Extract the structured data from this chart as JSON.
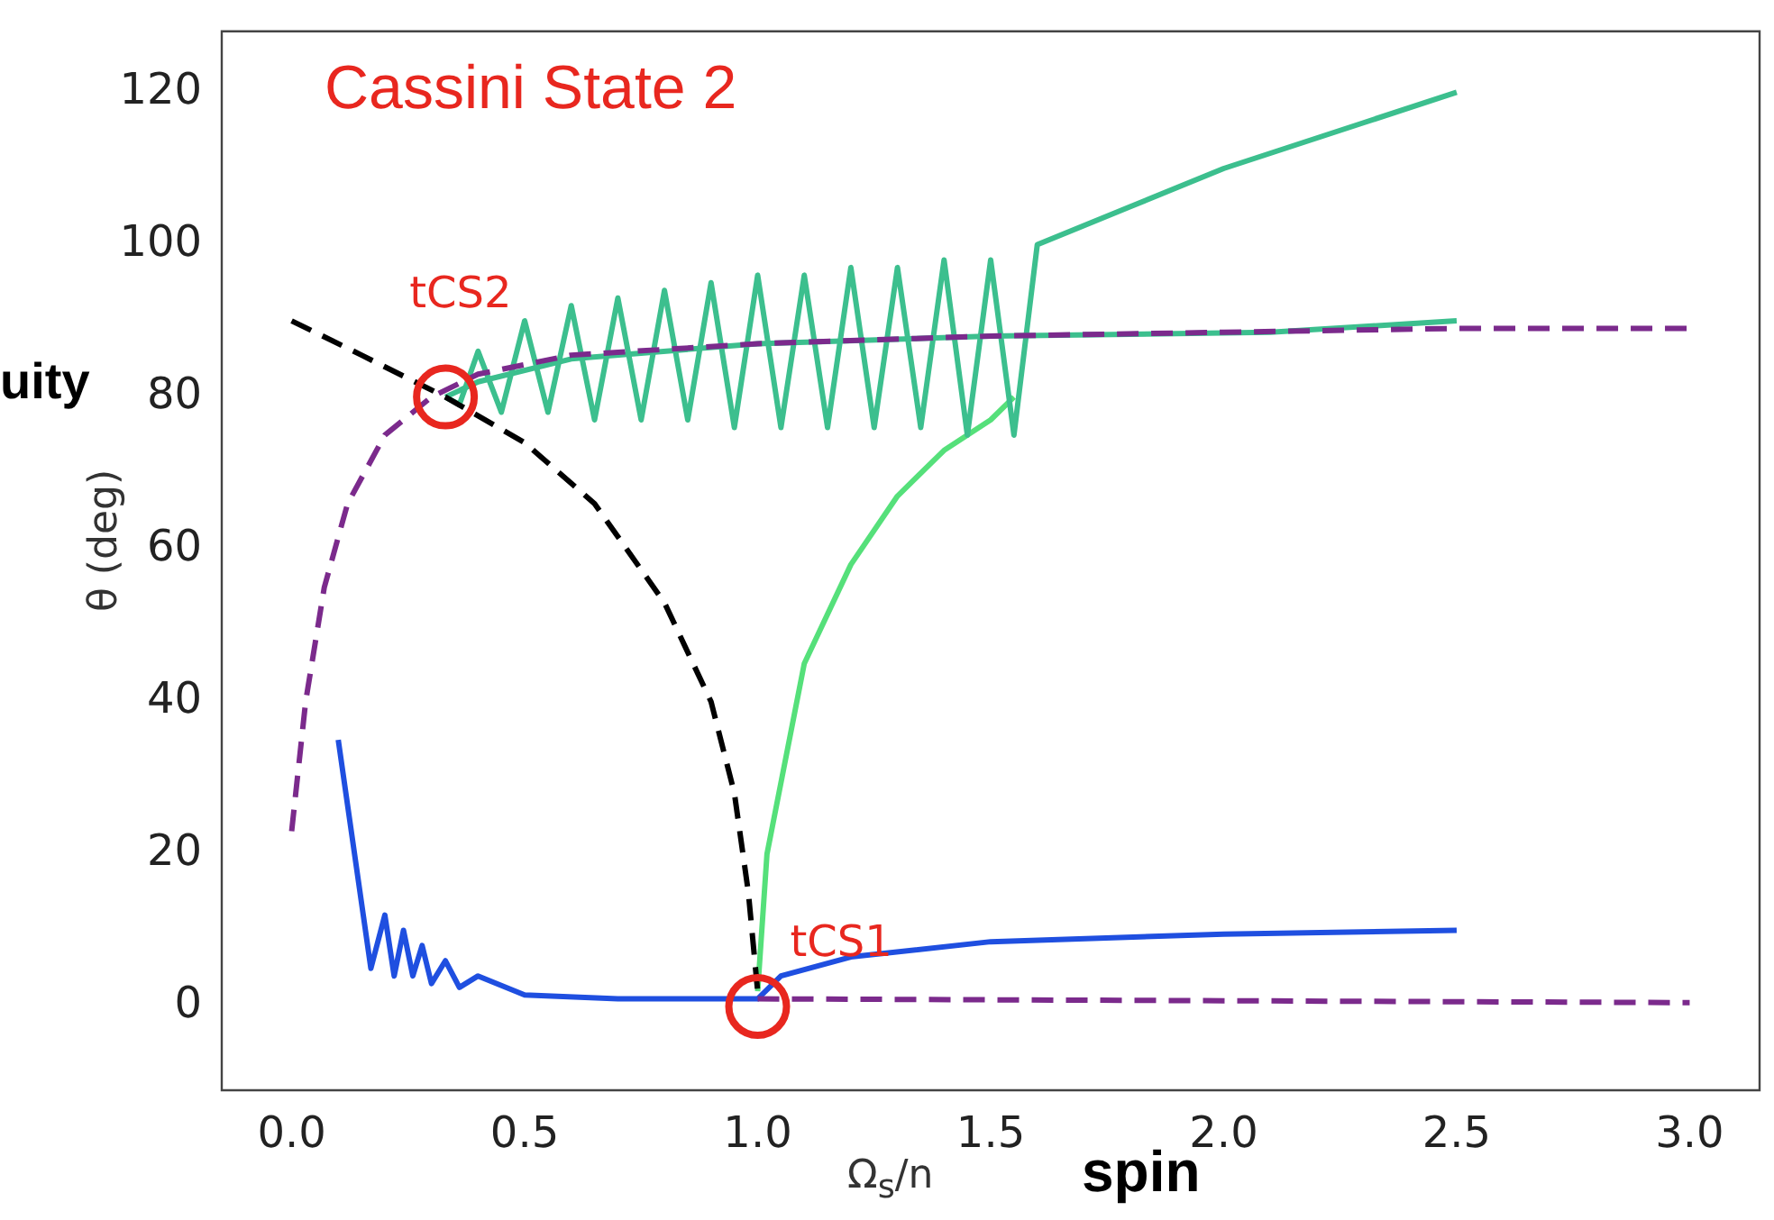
{
  "chart_data": {
    "type": "line",
    "ylabel": "θ (deg)",
    "xlabel": "Ω$_{s}$/n",
    "xlim": [
      -0.15,
      3.15
    ],
    "ylim": [
      -11,
      128
    ],
    "xticks": [
      {
        "value": 0,
        "label": "0.0"
      },
      {
        "value": 0.5,
        "label": "0.5"
      },
      {
        "value": 1,
        "label": "1.0"
      },
      {
        "value": 1.5,
        "label": "1.5"
      },
      {
        "value": 2,
        "label": "2.0"
      },
      {
        "value": 2.5,
        "label": "2.5"
      },
      {
        "value": 3,
        "label": "3.0"
      }
    ],
    "yticks": [
      0,
      20,
      40,
      60,
      80,
      100,
      120
    ],
    "grid": false,
    "legend": false,
    "marker": "none",
    "series": [
      {
        "color": "#7b2a8c",
        "line_style": "dashed",
        "x": [
          0.0,
          0.03,
          0.07,
          0.12,
          0.2,
          0.3,
          0.4,
          0.6,
          1.0,
          1.5,
          2.0,
          2.5,
          3.0
        ],
        "values": [
          23,
          40,
          55,
          66,
          75,
          80,
          83,
          85.5,
          87,
          88,
          88.5,
          89,
          89
        ]
      },
      {
        "color": "#7b2a8c",
        "line_style": "dashed",
        "x": [
          1.0,
          3.0
        ],
        "values": [
          1,
          0.5
        ]
      },
      {
        "color": "#000000",
        "line_style": "dashed",
        "x": [
          0.0,
          0.15,
          0.33,
          0.5,
          0.65,
          0.8,
          0.9,
          0.95,
          0.98,
          1.0
        ],
        "values": [
          90,
          85.5,
          80,
          74,
          66,
          53,
          40,
          28,
          15,
          2
        ]
      },
      {
        "color": "#1f4fe0",
        "line_style": "solid",
        "x": [
          0.1,
          0.17,
          0.2,
          0.22,
          0.24,
          0.26,
          0.28,
          0.3,
          0.33,
          0.36,
          0.4,
          0.5,
          0.7,
          1.0,
          1.05,
          1.2,
          1.5,
          2.0,
          2.5
        ],
        "values": [
          35,
          5,
          12,
          4,
          10,
          4,
          8,
          3,
          6,
          2.5,
          4,
          1.5,
          1,
          1,
          4,
          6.5,
          8.5,
          9.5,
          10
        ]
      },
      {
        "color": "#3cbf8e",
        "line_style": "solid",
        "x": [
          2.5,
          2.3,
          2.0,
          1.8,
          1.6,
          1.55,
          1.5,
          1.45,
          1.4,
          1.35,
          1.3,
          1.25,
          1.2,
          1.15,
          1.1,
          1.05,
          1.0,
          0.95,
          0.9,
          0.85,
          0.8,
          0.75,
          0.7,
          0.65,
          0.6,
          0.55,
          0.5,
          0.45,
          0.4,
          0.36,
          0.33
        ],
        "values": [
          120,
          116,
          110,
          105,
          100,
          75,
          98,
          75,
          98,
          76,
          97,
          76,
          97,
          76,
          96,
          76,
          96,
          76,
          95,
          77,
          94,
          77,
          93,
          77,
          92,
          78,
          90,
          78,
          86,
          79,
          80
        ]
      },
      {
        "color": "#3cbf8e",
        "line_style": "solid",
        "x": [
          2.5,
          2.1,
          1.5,
          1.0,
          0.6,
          0.4,
          0.33
        ],
        "values": [
          90,
          88.5,
          88,
          87,
          85,
          82,
          80
        ]
      },
      {
        "color": "#55e07a",
        "line_style": "solid",
        "x": [
          1.0,
          1.02,
          1.1,
          1.2,
          1.3,
          1.4,
          1.5,
          1.55
        ],
        "values": [
          2,
          20,
          45,
          58,
          67,
          73,
          77,
          80
        ]
      }
    ],
    "annotations": [
      "Cassini State 2",
      "uity",
      "spin",
      {
        "text": "tCS2",
        "x": 0.33,
        "y": 80
      },
      {
        "text": "tCS1",
        "x": 1.0,
        "y": 0
      }
    ]
  }
}
